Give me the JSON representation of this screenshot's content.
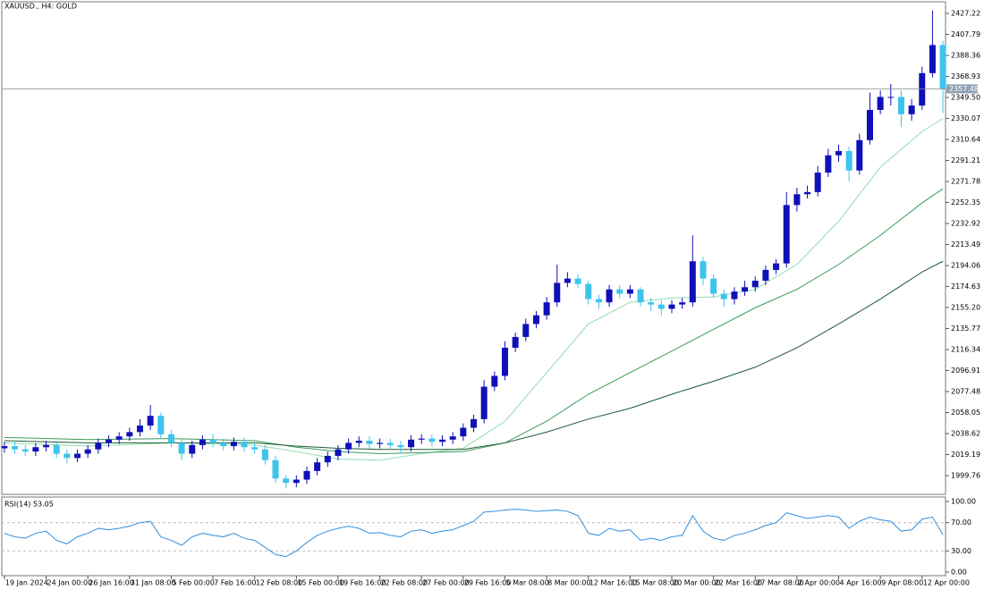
{
  "chart_data": {
    "type": "candlestick",
    "title": "XAUUSD., H4:  GOLD",
    "up_color": "#1010b8",
    "down_color": "#3cc4ec",
    "x": [
      0,
      4,
      8,
      12,
      16,
      20,
      24,
      28,
      32,
      36,
      40,
      44,
      48,
      52,
      56,
      60,
      64,
      68,
      72,
      76,
      80,
      84,
      88,
      92,
      96,
      100,
      104,
      108,
      112,
      116,
      120,
      124,
      128,
      132,
      136,
      140,
      144,
      148,
      152,
      156,
      160,
      164,
      168,
      172,
      176,
      180,
      184,
      188,
      192,
      196,
      200,
      204,
      208,
      212,
      216,
      220,
      224,
      228,
      232,
      236,
      240,
      244,
      248,
      252,
      256,
      260,
      264,
      268,
      272,
      276,
      280,
      284,
      288,
      292,
      296,
      300,
      304,
      308,
      312,
      316,
      320,
      324,
      328,
      332,
      336,
      340,
      344,
      348,
      352,
      356,
      360
    ],
    "open": [
      2025,
      2027,
      2024,
      2022,
      2026,
      2028,
      2020,
      2016,
      2020,
      2024,
      2030,
      2033,
      2036,
      2040,
      2046,
      2055,
      2038,
      2030,
      2020,
      2028,
      2033,
      2030,
      2027,
      2031,
      2026,
      2024,
      2014,
      1997,
      1993,
      1996,
      2004,
      2012,
      2018,
      2024,
      2030,
      2032,
      2029,
      2030,
      2028,
      2026,
      2033,
      2034,
      2031,
      2033,
      2036,
      2044,
      2052,
      2082,
      2092,
      2118,
      2128,
      2140,
      2148,
      2160,
      2178,
      2182,
      2177,
      2163,
      2160,
      2172,
      2168,
      2172,
      2160,
      2158,
      2154,
      2158,
      2160,
      2198,
      2182,
      2168,
      2163,
      2170,
      2174,
      2180,
      2190,
      2196,
      2250,
      2260,
      2262,
      2280,
      2296,
      2300,
      2282,
      2310,
      2338,
      2350,
      2350,
      2334,
      2342,
      2372,
      2398
    ],
    "high": [
      2031,
      2031,
      2028,
      2030,
      2032,
      2032,
      2024,
      2024,
      2028,
      2034,
      2037,
      2040,
      2044,
      2052,
      2065,
      2058,
      2042,
      2034,
      2032,
      2037,
      2038,
      2034,
      2035,
      2035,
      2030,
      2028,
      2018,
      2000,
      2000,
      2008,
      2016,
      2022,
      2028,
      2034,
      2036,
      2036,
      2034,
      2034,
      2032,
      2037,
      2038,
      2038,
      2037,
      2040,
      2048,
      2056,
      2088,
      2096,
      2124,
      2132,
      2145,
      2152,
      2165,
      2195,
      2188,
      2186,
      2180,
      2167,
      2176,
      2176,
      2176,
      2174,
      2164,
      2162,
      2162,
      2164,
      2222,
      2202,
      2186,
      2172,
      2174,
      2180,
      2184,
      2194,
      2200,
      2262,
      2266,
      2268,
      2286,
      2302,
      2306,
      2304,
      2316,
      2354,
      2356,
      2362,
      2356,
      2348,
      2378,
      2430,
      2402
    ],
    "low": [
      2021,
      2020,
      2018,
      2018,
      2022,
      2016,
      2011,
      2012,
      2016,
      2020,
      2026,
      2029,
      2032,
      2036,
      2042,
      2034,
      2026,
      2014,
      2016,
      2024,
      2026,
      2023,
      2023,
      2022,
      2020,
      2010,
      1993,
      1988,
      1989,
      1992,
      2000,
      2008,
      2014,
      2020,
      2026,
      2025,
      2025,
      2024,
      2020,
      2022,
      2029,
      2027,
      2027,
      2029,
      2032,
      2040,
      2048,
      2078,
      2088,
      2114,
      2124,
      2136,
      2144,
      2156,
      2174,
      2173,
      2158,
      2154,
      2156,
      2164,
      2164,
      2156,
      2152,
      2148,
      2150,
      2154,
      2156,
      2176,
      2164,
      2156,
      2158,
      2166,
      2170,
      2176,
      2186,
      2192,
      2244,
      2256,
      2258,
      2276,
      2290,
      2272,
      2278,
      2306,
      2334,
      2342,
      2322,
      2328,
      2338,
      2368,
      2335
    ],
    "close": [
      2027,
      2024,
      2022,
      2026,
      2028,
      2020,
      2016,
      2020,
      2024,
      2030,
      2033,
      2036,
      2040,
      2046,
      2055,
      2038,
      2030,
      2020,
      2028,
      2033,
      2030,
      2027,
      2031,
      2026,
      2024,
      2014,
      1997,
      1993,
      1996,
      2004,
      2012,
      2018,
      2024,
      2030,
      2032,
      2029,
      2030,
      2028,
      2026,
      2033,
      2034,
      2031,
      2033,
      2036,
      2044,
      2052,
      2082,
      2092,
      2118,
      2128,
      2140,
      2148,
      2160,
      2178,
      2182,
      2177,
      2163,
      2160,
      2172,
      2168,
      2172,
      2160,
      2158,
      2154,
      2158,
      2160,
      2198,
      2182,
      2168,
      2163,
      2170,
      2174,
      2180,
      2190,
      2196,
      2250,
      2260,
      2262,
      2280,
      2296,
      2300,
      2282,
      2310,
      2338,
      2350,
      2350,
      2334,
      2342,
      2372,
      2398,
      2357.48
    ],
    "xlim": [
      -1,
      361
    ],
    "ylim": [
      1982.4,
      2438.0
    ],
    "yticks": [
      2427.22,
      2407.79,
      2388.36,
      2368.93,
      {
        "value": 2349.5,
        "label": "2349.50"
      },
      2330.07,
      2310.64,
      2291.21,
      2271.78,
      2252.35,
      2232.92,
      2213.49,
      2194.06,
      2174.63,
      {
        "value": 2155.2,
        "label": "2155.20"
      },
      2135.77,
      2116.34,
      2096.91,
      2077.48,
      2058.05,
      2038.62,
      2019.19,
      1999.76
    ],
    "xticks": [
      {
        "value": 0,
        "label": "19 Jan 2024"
      },
      {
        "value": 16,
        "label": "24 Jan 00:00"
      },
      {
        "value": 32,
        "label": "26 Jan 16:00"
      },
      {
        "value": 48,
        "label": "31 Jan 08:00"
      },
      {
        "value": 64,
        "label": "5 Feb 00:00"
      },
      {
        "value": 80,
        "label": "7 Feb 16:00"
      },
      {
        "value": 96,
        "label": "12 Feb 08:00"
      },
      {
        "value": 112,
        "label": "15 Feb 00:00"
      },
      {
        "value": 128,
        "label": "19 Feb 16:00"
      },
      {
        "value": 144,
        "label": "22 Feb 08:00"
      },
      {
        "value": 160,
        "label": "27 Feb 00:00"
      },
      {
        "value": 176,
        "label": "29 Feb 16:00"
      },
      {
        "value": 192,
        "label": "5 Mar 08:00"
      },
      {
        "value": 208,
        "label": "8 Mar 00:00"
      },
      {
        "value": 224,
        "label": "12 Mar 16:00"
      },
      {
        "value": 240,
        "label": "15 Mar 08:00"
      },
      {
        "value": 256,
        "label": "20 Mar 00:00"
      },
      {
        "value": 272,
        "label": "22 Mar 16:00"
      },
      {
        "value": 288,
        "label": "27 Mar 08:00"
      },
      {
        "value": 304,
        "label": "2 Apr 00:00"
      },
      {
        "value": 320,
        "label": "4 Apr 16:00"
      },
      {
        "value": 336,
        "label": "9 Apr 08:00"
      },
      {
        "value": 352,
        "label": "12 Apr 00:00"
      }
    ],
    "last_price": {
      "value": 2357.48,
      "label": "2357.48"
    },
    "moving_averages": [
      {
        "color": "#8fdcae",
        "x": [
          0,
          32,
          64,
          96,
          112,
          128,
          144,
          160,
          176,
          192,
          208,
          224,
          240,
          256,
          272,
          288,
          304,
          320,
          336,
          352,
          360
        ],
        "values": [
          2030,
          2027,
          2030,
          2028,
          2022,
          2015,
          2014,
          2020,
          2025,
          2050,
          2095,
          2140,
          2160,
          2164,
          2165,
          2172,
          2195,
          2235,
          2285,
          2318,
          2330
        ]
      },
      {
        "color": "#3c9a5a",
        "x": [
          0,
          32,
          64,
          96,
          112,
          128,
          144,
          160,
          176,
          192,
          208,
          224,
          240,
          256,
          272,
          288,
          304,
          320,
          336,
          352,
          360
        ],
        "values": [
          2035,
          2033,
          2034,
          2032,
          2026,
          2022,
          2020,
          2021,
          2022,
          2030,
          2050,
          2075,
          2095,
          2115,
          2135,
          2155,
          2172,
          2195,
          2222,
          2252,
          2265
        ]
      },
      {
        "color": "#1e5a32",
        "x": [
          0,
          32,
          64,
          96,
          112,
          128,
          144,
          160,
          176,
          192,
          208,
          224,
          240,
          256,
          272,
          288,
          304,
          320,
          336,
          352,
          360
        ],
        "values": [
          2032,
          2030,
          2030,
          2030,
          2027,
          2025,
          2024,
          2024,
          2024,
          2030,
          2040,
          2052,
          2062,
          2075,
          2087,
          2100,
          2118,
          2140,
          2163,
          2188,
          2198
        ]
      }
    ],
    "indicator": {
      "type": "line",
      "title": "RSI(14) 53.05",
      "color": "#2f8fe0",
      "values": [
        55,
        50,
        48,
        55,
        58,
        45,
        40,
        50,
        55,
        62,
        60,
        62,
        65,
        70,
        72,
        50,
        45,
        38,
        50,
        55,
        52,
        50,
        55,
        48,
        45,
        35,
        25,
        22,
        30,
        42,
        52,
        58,
        62,
        65,
        62,
        55,
        56,
        52,
        50,
        58,
        60,
        55,
        58,
        60,
        66,
        72,
        85,
        86,
        88,
        89,
        88,
        86,
        87,
        88,
        86,
        80,
        55,
        52,
        62,
        58,
        60,
        45,
        48,
        45,
        50,
        52,
        80,
        58,
        48,
        45,
        52,
        55,
        60,
        66,
        70,
        84,
        80,
        76,
        78,
        80,
        78,
        62,
        72,
        78,
        74,
        72,
        58,
        60,
        75,
        78,
        53.05
      ],
      "ylim": [
        0,
        100
      ],
      "yticks": [
        {
          "value": 100,
          "label": "100.00"
        },
        {
          "value": 70,
          "label": "70.00"
        },
        {
          "value": 30,
          "label": "30.00"
        },
        {
          "value": 0,
          "label": "0.00"
        }
      ]
    }
  }
}
